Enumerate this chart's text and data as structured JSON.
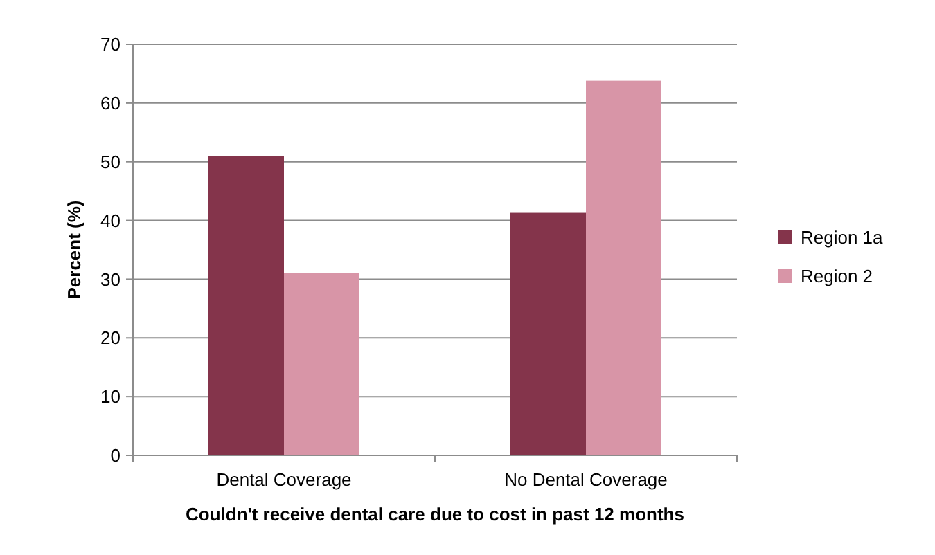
{
  "chart_data": {
    "type": "bar",
    "xlabel": "Couldn't receive dental care due to cost in past 12 months",
    "ylabel": "Percent (%)",
    "categories": [
      "Dental Coverage",
      "No Dental Coverage"
    ],
    "series": [
      {
        "name": "Region 1a",
        "color": "#84344b",
        "values": [
          51,
          41.3
        ]
      },
      {
        "name": "Region 2",
        "color": "#d895a7",
        "values": [
          31,
          63.8
        ]
      }
    ],
    "ylim": [
      0,
      70
    ],
    "yticks": [
      0,
      10,
      20,
      30,
      40,
      50,
      60,
      70
    ],
    "grid": "y",
    "legend": "right"
  }
}
